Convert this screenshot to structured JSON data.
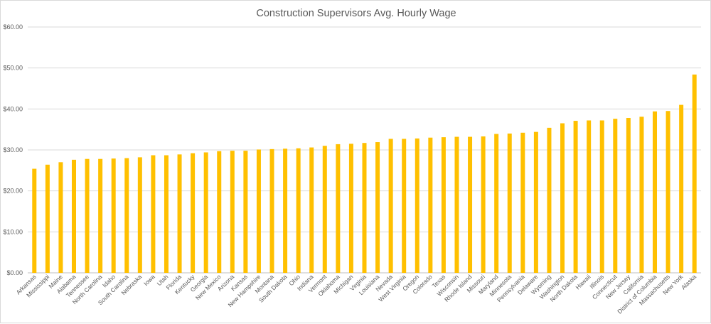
{
  "chart_data": {
    "type": "bar",
    "title": "Construction Supervisors Avg. Hourly Wage",
    "xlabel": "",
    "ylabel": "",
    "ylim": [
      0,
      60
    ],
    "ytick_values": [
      0,
      10,
      20,
      30,
      40,
      50,
      60
    ],
    "ytick_labels": [
      "$0.00",
      "$10.00",
      "$20.00",
      "$30.00",
      "$40.00",
      "$50.00",
      "$60.00"
    ],
    "grid": true,
    "legend": "none",
    "bar_color": "#FFC000",
    "categories": [
      "Arkansas",
      "Mississippi",
      "Maine",
      "Alabama",
      "Tennessee",
      "North Carolina",
      "Idaho",
      "South Carolina",
      "Nebraska",
      "Iowa",
      "Utah",
      "Florida",
      "Kentucky",
      "Georgia",
      "New Mexico",
      "Arizona",
      "Kansas",
      "New Hampshire",
      "Montana",
      "South Dakota",
      "Ohio",
      "Indiana",
      "Vermont",
      "Oklahoma",
      "Michigan",
      "Virginia",
      "Louisiana",
      "Nevada",
      "West Virginia",
      "Oregon",
      "Colorado",
      "Texas",
      "Wisconsin",
      "Rhode Island",
      "Missouri",
      "Maryland",
      "Minnesota",
      "Pennsylvania",
      "Delaware",
      "Wyoming",
      "Washington",
      "North Dakota",
      "Hawaii",
      "Illinois",
      "Connecticut",
      "New Jersey",
      "California",
      "District of Columbia",
      "Massachusetts",
      "New York",
      "Alaska"
    ],
    "values": [
      25.4,
      26.4,
      27.0,
      27.6,
      27.8,
      27.8,
      27.9,
      28.0,
      28.2,
      28.7,
      28.7,
      28.9,
      29.2,
      29.4,
      29.7,
      29.8,
      29.8,
      30.1,
      30.2,
      30.3,
      30.4,
      30.6,
      31.0,
      31.4,
      31.5,
      31.7,
      31.9,
      32.7,
      32.7,
      32.8,
      33.0,
      33.1,
      33.2,
      33.2,
      33.3,
      33.9,
      34.0,
      34.2,
      34.4,
      35.4,
      36.5,
      37.1,
      37.2,
      37.2,
      37.6,
      37.8,
      38.1,
      39.4,
      39.5,
      41.0,
      48.4
    ]
  }
}
